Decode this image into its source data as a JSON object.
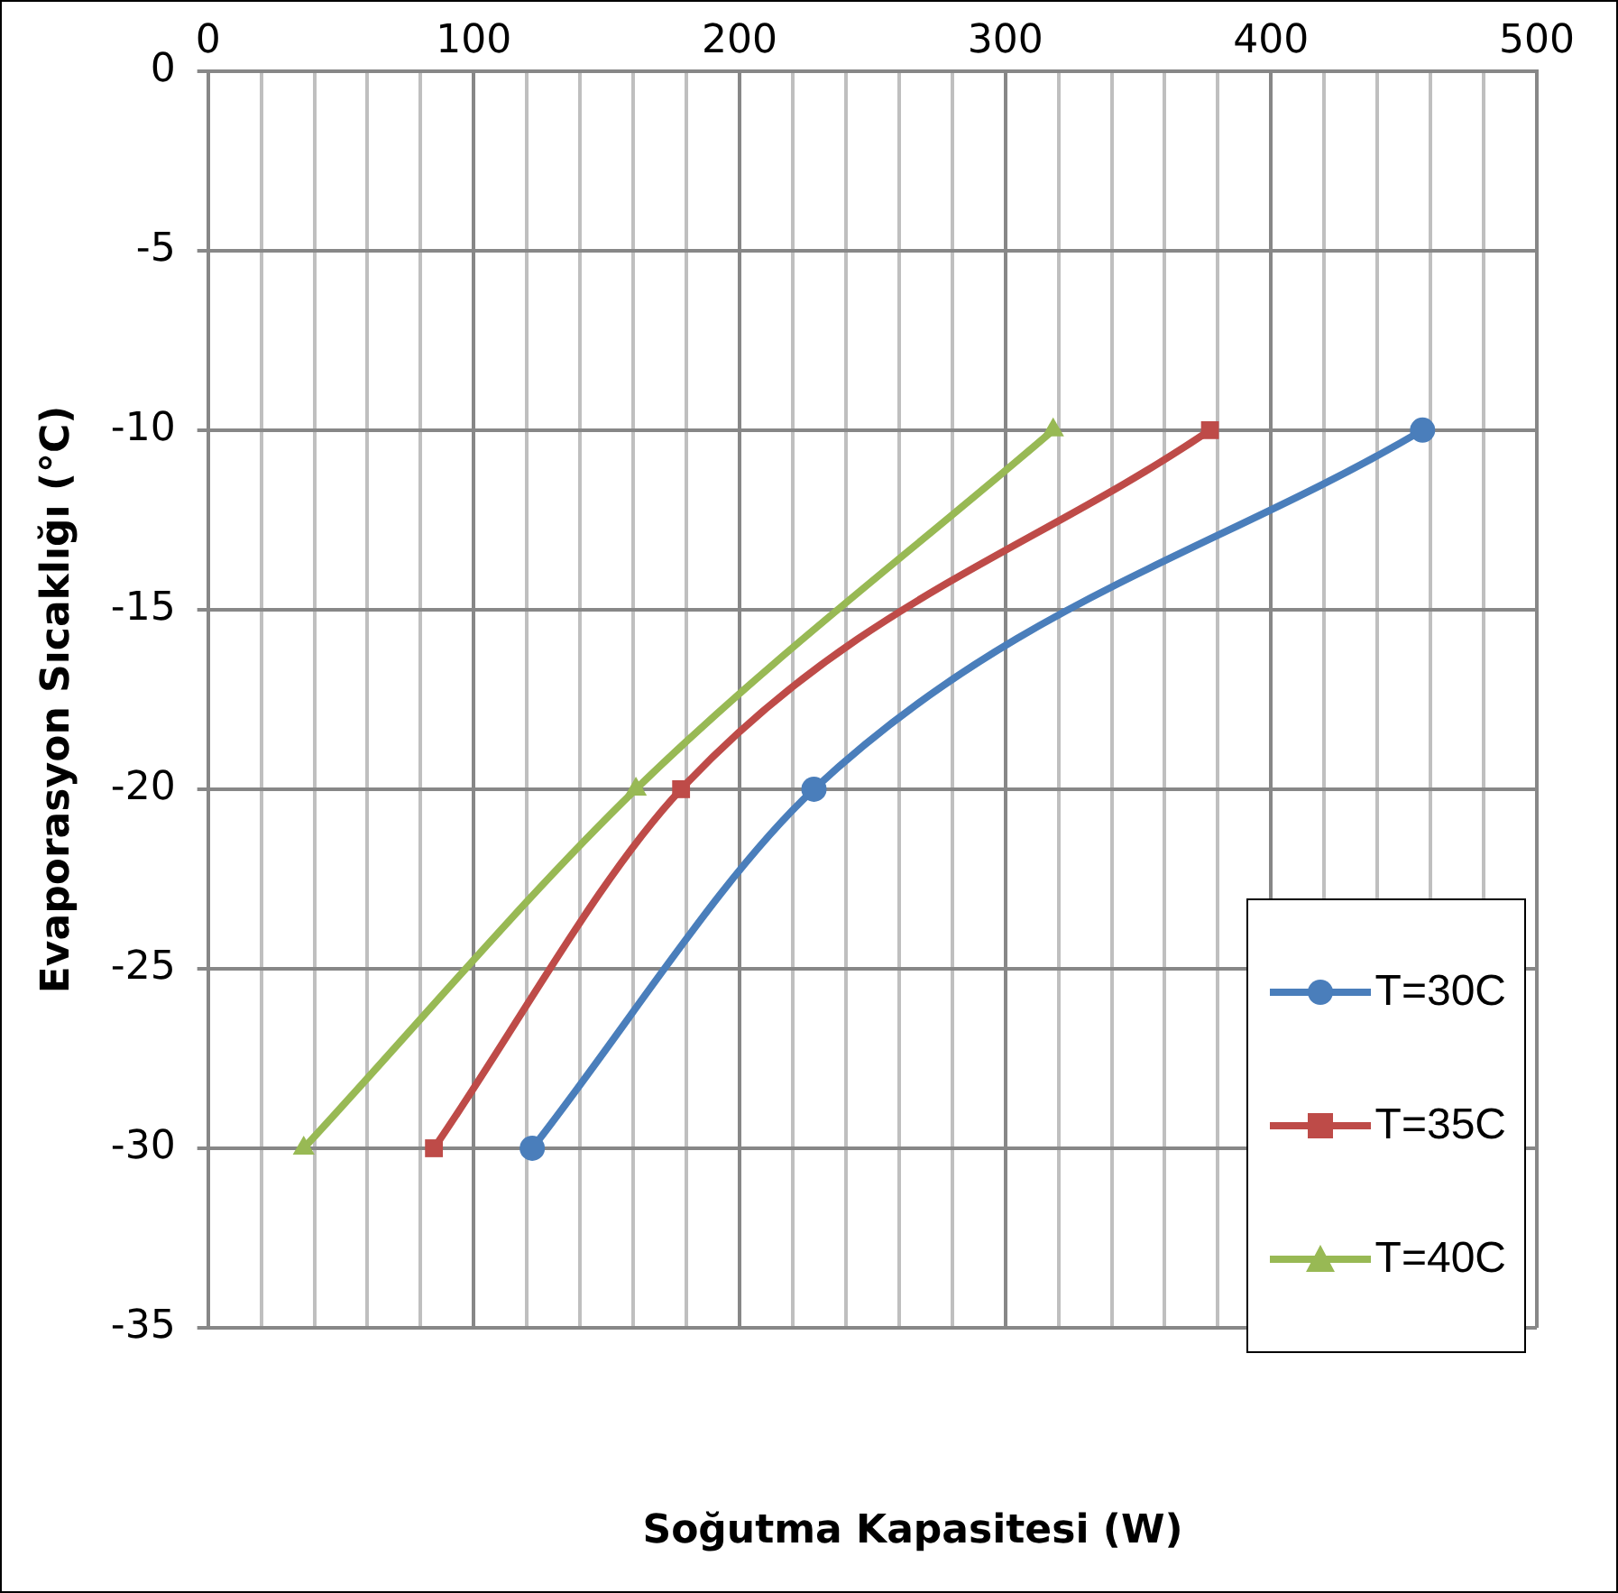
{
  "chart_data": {
    "type": "line",
    "xlabel": "Soğutma Kapasitesi (W)",
    "ylabel": "Evaporasyon Sıcaklığı (°C)",
    "xlim": [
      0,
      500
    ],
    "ylim": [
      -35,
      0
    ],
    "xticks": [
      0,
      {
        "value": 20,
        "label": null
      },
      {
        "value": 40,
        "label": null
      },
      {
        "value": 60,
        "label": null
      },
      {
        "value": 80,
        "label": null
      },
      100,
      {
        "value": 120,
        "label": null
      },
      {
        "value": 140,
        "label": null
      },
      {
        "value": 160,
        "label": null
      },
      {
        "value": 180,
        "label": null
      },
      200,
      {
        "value": 220,
        "label": null
      },
      {
        "value": 240,
        "label": null
      },
      {
        "value": 260,
        "label": null
      },
      {
        "value": 280,
        "label": null
      },
      300,
      {
        "value": 320,
        "label": null
      },
      {
        "value": 340,
        "label": null
      },
      {
        "value": 360,
        "label": null
      },
      {
        "value": 380,
        "label": null
      },
      400,
      {
        "value": 420,
        "label": null
      },
      {
        "value": 440,
        "label": null
      },
      {
        "value": 460,
        "label": null
      },
      {
        "value": 480,
        "label": null
      },
      500
    ],
    "yticks": [
      0,
      -5,
      -10,
      -15,
      -20,
      -25,
      -30,
      -35
    ],
    "grid": true,
    "legend": "right",
    "series": [
      {
        "name": "T=30C",
        "color": "#4a7ebb",
        "marker": "circle",
        "x": [
          122,
          228,
          457
        ],
        "values": [
          -30,
          -20,
          -10
        ]
      },
      {
        "name": "T=35C",
        "color": "#be4b48",
        "marker": "square",
        "x": [
          85,
          178,
          377
        ],
        "values": [
          -30,
          -20,
          -10
        ]
      },
      {
        "name": "T=40C",
        "color": "#98b954",
        "marker": "triangle",
        "x": [
          36,
          161,
          318
        ],
        "values": [
          -30,
          -20,
          -10
        ]
      }
    ]
  }
}
